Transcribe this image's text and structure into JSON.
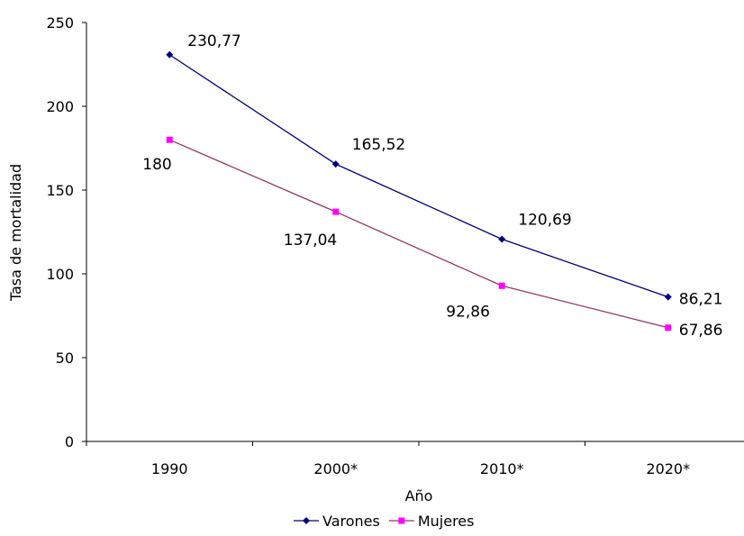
{
  "chart_data": {
    "type": "line",
    "categories": [
      "1990",
      "2000*",
      "2010*",
      "2020*"
    ],
    "series": [
      {
        "name": "Varones",
        "values": [
          230.77,
          165.52,
          120.69,
          86.21
        ],
        "labels": [
          "230,77",
          "165,52",
          "120,69",
          "86,21"
        ],
        "color": "#000080",
        "marker": "diamond"
      },
      {
        "name": "Mujeres",
        "values": [
          180,
          137.04,
          92.86,
          67.86
        ],
        "labels": [
          "180",
          "137,04",
          "92,86",
          "67,86"
        ],
        "color": "#993366",
        "marker_color": "#FF00FF",
        "marker": "square"
      }
    ],
    "title": "",
    "xlabel": "Año",
    "ylabel": "Tasa de mortalidad",
    "ylim": [
      0,
      250
    ],
    "yticks": [
      0,
      50,
      100,
      150,
      200,
      250
    ],
    "grid": false,
    "legend": "bottom"
  }
}
